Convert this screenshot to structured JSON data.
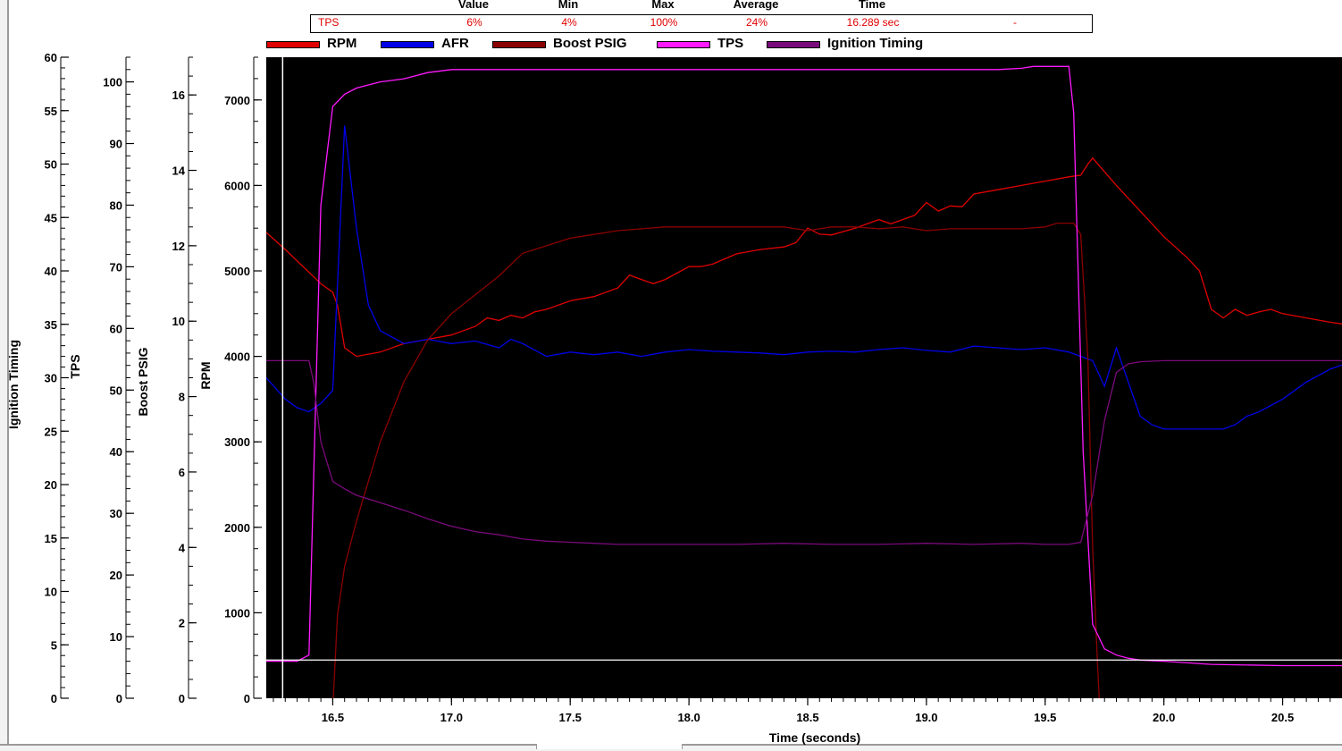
{
  "stats": {
    "headers": [
      "Value",
      "Min",
      "Max",
      "Average",
      "Time"
    ],
    "row": {
      "channel": "TPS",
      "value": "6%",
      "min": "4%",
      "max": "100%",
      "average": "24%",
      "time": "16.289 sec",
      "extra": "-"
    }
  },
  "colors": {
    "rpm": "#e00000",
    "afr": "#0000e8",
    "boost": "#8b0000",
    "tps": "#ff1aff",
    "ignition": "#7a0a7a",
    "background": "#000000"
  },
  "chart_data": {
    "type": "line",
    "xlabel": "Time (seconds)",
    "xlim": [
      16.22,
      20.75
    ],
    "x_ticks": [
      "16.5",
      "17.0",
      "17.5",
      "18.0",
      "18.5",
      "19.0",
      "19.5",
      "20.0",
      "20.5"
    ],
    "cursor_x": 16.289,
    "axes": [
      {
        "name": "Ignition Timing",
        "ylim": [
          0,
          60
        ],
        "ticks": [
          "0",
          "5",
          "10",
          "15",
          "20",
          "25",
          "30",
          "35",
          "40",
          "45",
          "50",
          "55",
          "60"
        ]
      },
      {
        "name": "TPS",
        "ylim": [
          0,
          104
        ],
        "ticks": [
          "0",
          "10",
          "20",
          "30",
          "40",
          "50",
          "60",
          "70",
          "80",
          "90",
          "100"
        ]
      },
      {
        "name": "Boost PSIG",
        "ylim": [
          0,
          17
        ],
        "ticks": [
          "0",
          "2",
          "4",
          "6",
          "8",
          "10",
          "12",
          "14",
          "16"
        ]
      },
      {
        "name": "RPM",
        "ylim": [
          0,
          7500
        ],
        "ticks": [
          "0",
          "1000",
          "2000",
          "3000",
          "4000",
          "5000",
          "6000",
          "7000"
        ]
      }
    ],
    "series": [
      {
        "name": "RPM",
        "axis": "RPM",
        "x": [
          16.22,
          16.3,
          16.45,
          16.5,
          16.52,
          16.55,
          16.6,
          16.7,
          16.8,
          16.9,
          17.0,
          17.1,
          17.15,
          17.2,
          17.25,
          17.3,
          17.35,
          17.4,
          17.5,
          17.6,
          17.7,
          17.75,
          17.8,
          17.85,
          17.9,
          18.0,
          18.05,
          18.1,
          18.2,
          18.3,
          18.4,
          18.45,
          18.5,
          18.55,
          18.6,
          18.7,
          18.8,
          18.85,
          18.9,
          18.95,
          19.0,
          19.05,
          19.1,
          19.15,
          19.2,
          19.3,
          19.4,
          19.5,
          19.6,
          19.65,
          19.68,
          19.7,
          19.8,
          19.9,
          20.0,
          20.1,
          20.15,
          20.2,
          20.25,
          20.3,
          20.35,
          20.4,
          20.45,
          20.5,
          20.6,
          20.7,
          20.75
        ],
        "y": [
          5450,
          5250,
          4850,
          4750,
          4600,
          4100,
          4000,
          4050,
          4150,
          4200,
          4250,
          4350,
          4450,
          4420,
          4480,
          4450,
          4520,
          4550,
          4650,
          4700,
          4800,
          4950,
          4900,
          4850,
          4900,
          5050,
          5050,
          5080,
          5200,
          5250,
          5280,
          5330,
          5500,
          5430,
          5420,
          5500,
          5600,
          5550,
          5600,
          5650,
          5800,
          5700,
          5760,
          5750,
          5900,
          5950,
          6000,
          6050,
          6100,
          6120,
          6250,
          6320,
          6000,
          5700,
          5400,
          5150,
          5000,
          4550,
          4450,
          4550,
          4480,
          4520,
          4550,
          4500,
          4450,
          4400,
          4380
        ]
      },
      {
        "name": "AFR",
        "axis": "RPM",
        "x": [
          16.22,
          16.3,
          16.35,
          16.4,
          16.45,
          16.5,
          16.55,
          16.6,
          16.65,
          16.7,
          16.8,
          16.9,
          17.0,
          17.1,
          17.2,
          17.25,
          17.3,
          17.4,
          17.5,
          17.6,
          17.7,
          17.8,
          17.9,
          18.0,
          18.1,
          18.2,
          18.3,
          18.4,
          18.5,
          18.6,
          18.7,
          18.8,
          18.9,
          19.0,
          19.1,
          19.2,
          19.3,
          19.4,
          19.5,
          19.6,
          19.65,
          19.7,
          19.75,
          19.8,
          19.85,
          19.9,
          19.95,
          20.0,
          20.1,
          20.2,
          20.25,
          20.3,
          20.35,
          20.4,
          20.5,
          20.6,
          20.7,
          20.75
        ],
        "y": [
          3750,
          3500,
          3400,
          3350,
          3450,
          3600,
          6700,
          5500,
          4600,
          4300,
          4150,
          4200,
          4150,
          4180,
          4100,
          4200,
          4150,
          4000,
          4050,
          4020,
          4050,
          4000,
          4050,
          4080,
          4060,
          4050,
          4040,
          4020,
          4050,
          4060,
          4050,
          4080,
          4100,
          4070,
          4050,
          4120,
          4100,
          4080,
          4100,
          4050,
          4000,
          3950,
          3650,
          4100,
          3700,
          3300,
          3200,
          3150,
          3150,
          3150,
          3150,
          3200,
          3300,
          3350,
          3500,
          3700,
          3850,
          3900
        ]
      },
      {
        "name": "Boost PSIG",
        "axis": "Boost PSIG",
        "x": [
          16.5,
          16.52,
          16.55,
          16.6,
          16.7,
          16.8,
          16.9,
          17.0,
          17.1,
          17.2,
          17.3,
          17.4,
          17.5,
          17.6,
          17.7,
          17.8,
          17.9,
          18.0,
          18.1,
          18.2,
          18.3,
          18.4,
          18.5,
          18.6,
          18.7,
          18.8,
          18.9,
          19.0,
          19.1,
          19.2,
          19.3,
          19.4,
          19.5,
          19.55,
          19.6,
          19.62,
          19.65,
          19.68,
          19.7,
          19.72,
          19.73
        ],
        "y": [
          -0.3,
          2.2,
          3.5,
          4.7,
          6.8,
          8.4,
          9.5,
          10.2,
          10.7,
          11.2,
          11.8,
          12.0,
          12.2,
          12.3,
          12.4,
          12.45,
          12.5,
          12.5,
          12.5,
          12.5,
          12.5,
          12.5,
          12.4,
          12.5,
          12.5,
          12.45,
          12.5,
          12.4,
          12.45,
          12.45,
          12.45,
          12.45,
          12.5,
          12.6,
          12.6,
          12.6,
          12.3,
          9.0,
          4.0,
          1.0,
          -0.3
        ]
      },
      {
        "name": "TPS",
        "axis": "TPS",
        "x": [
          16.22,
          16.3,
          16.35,
          16.4,
          16.45,
          16.5,
          16.55,
          16.6,
          16.65,
          16.7,
          16.8,
          16.9,
          17.0,
          17.2,
          17.5,
          18.0,
          18.5,
          19.0,
          19.3,
          19.4,
          19.45,
          19.5,
          19.6,
          19.62,
          19.66,
          19.7,
          19.75,
          19.8,
          19.85,
          19.9,
          20.0,
          20.2,
          20.5,
          20.75
        ],
        "y": [
          6,
          6,
          6,
          7,
          80,
          96,
          98,
          99,
          99.5,
          100,
          100.5,
          101.5,
          102,
          102,
          102,
          102,
          102,
          102,
          102,
          102.2,
          102.5,
          102.5,
          102.5,
          95,
          40,
          12,
          8,
          7,
          6.5,
          6.2,
          6,
          5.5,
          5.3,
          5.3
        ]
      },
      {
        "name": "Ignition Timing",
        "axis": "Ignition Timing",
        "x": [
          16.22,
          16.3,
          16.4,
          16.42,
          16.45,
          16.5,
          16.55,
          16.6,
          16.7,
          16.8,
          16.9,
          17.0,
          17.1,
          17.2,
          17.3,
          17.4,
          17.5,
          17.6,
          17.7,
          17.8,
          18.0,
          18.2,
          18.4,
          18.6,
          18.8,
          19.0,
          19.2,
          19.4,
          19.5,
          19.6,
          19.65,
          19.7,
          19.75,
          19.8,
          19.85,
          19.9,
          20.0,
          20.3,
          20.5,
          20.75
        ],
        "y": [
          31.6,
          31.6,
          31.6,
          29.5,
          24,
          20.3,
          19.6,
          19,
          18.3,
          17.6,
          16.8,
          16.1,
          15.6,
          15.3,
          14.9,
          14.7,
          14.6,
          14.5,
          14.4,
          14.4,
          14.4,
          14.4,
          14.5,
          14.4,
          14.4,
          14.5,
          14.4,
          14.5,
          14.4,
          14.4,
          14.6,
          19.0,
          26.0,
          30.5,
          31.3,
          31.5,
          31.6,
          31.6,
          31.6,
          31.6
        ]
      }
    ]
  }
}
